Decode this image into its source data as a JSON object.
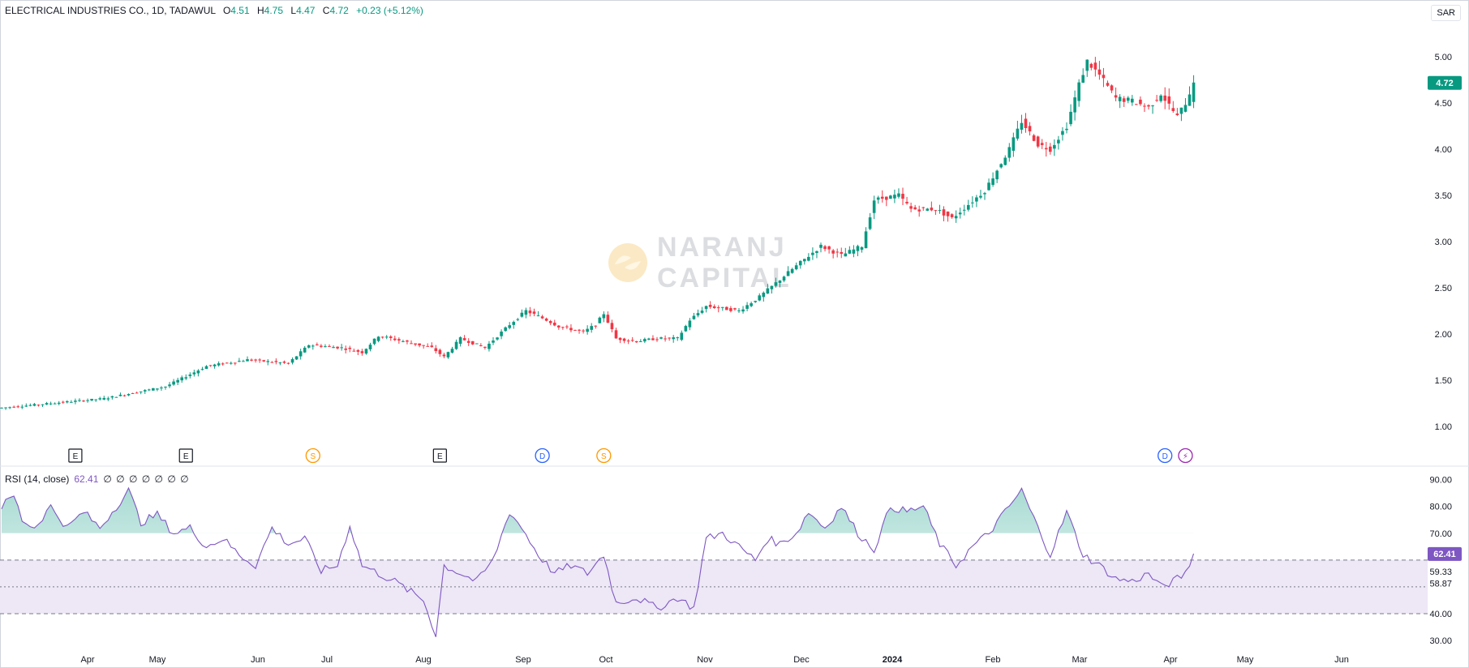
{
  "header": {
    "symbol": "ELECTRICAL INDUSTRIES CO., 1D, TADAWUL",
    "open_label": "O",
    "open": "4.51",
    "high_label": "H",
    "high": "4.75",
    "low_label": "L",
    "low": "4.47",
    "close_label": "C",
    "close": "4.72",
    "change": "+0.23 (+5.12%)"
  },
  "currency": "SAR",
  "watermark": {
    "line1": "NARANJ",
    "line2": "CAPITAL"
  },
  "rsi_header": {
    "title": "RSI (14, close)",
    "value": "62.41",
    "extras": "∅ ∅ ∅ ∅ ∅ ∅ ∅"
  },
  "colors": {
    "up": "#089981",
    "down": "#f23645",
    "rsi": "#7e57c2",
    "band": "#ede7f6"
  },
  "chart_data": [
    {
      "type": "candlestick",
      "y_axis_ticks": [
        1.0,
        1.5,
        2.0,
        2.5,
        3.0,
        3.5,
        4.0,
        4.5,
        5.0
      ],
      "ylim": [
        0.7,
        5.35
      ],
      "last_price_label": "4.72",
      "x_ticks": [
        "Apr",
        "May",
        "Jun",
        "Jul",
        "Aug",
        "Sep",
        "Oct",
        "Nov",
        "Dec",
        "2024",
        "Feb",
        "Mar",
        "Apr",
        "May",
        "Jun"
      ],
      "anchors": [
        [
          0,
          1.2
        ],
        [
          25,
          1.3
        ],
        [
          40,
          1.43
        ],
        [
          50,
          1.65
        ],
        [
          60,
          1.72
        ],
        [
          70,
          1.68
        ],
        [
          75,
          1.88
        ],
        [
          83,
          1.85
        ],
        [
          88,
          1.8
        ],
        [
          92,
          1.98
        ],
        [
          100,
          1.9
        ],
        [
          105,
          1.85
        ],
        [
          108,
          1.75
        ],
        [
          112,
          1.95
        ],
        [
          118,
          1.85
        ],
        [
          124,
          2.1
        ],
        [
          128,
          2.25
        ],
        [
          133,
          2.15
        ],
        [
          136,
          2.08
        ],
        [
          142,
          2.02
        ],
        [
          145,
          2.1
        ],
        [
          147,
          2.22
        ],
        [
          150,
          1.95
        ],
        [
          155,
          1.92
        ],
        [
          160,
          1.95
        ],
        [
          165,
          1.95
        ],
        [
          168,
          2.15
        ],
        [
          172,
          2.3
        ],
        [
          180,
          2.25
        ],
        [
          185,
          2.4
        ],
        [
          193,
          2.7
        ],
        [
          200,
          2.95
        ],
        [
          205,
          2.85
        ],
        [
          210,
          2.95
        ],
        [
          213,
          3.45
        ],
        [
          219,
          3.5
        ],
        [
          222,
          3.35
        ],
        [
          228,
          3.35
        ],
        [
          232,
          3.25
        ],
        [
          240,
          3.55
        ],
        [
          246,
          4.0
        ],
        [
          249,
          4.3
        ],
        [
          253,
          4.05
        ],
        [
          256,
          4.0
        ],
        [
          260,
          4.25
        ],
        [
          263,
          4.7
        ],
        [
          265,
          4.95
        ],
        [
          268,
          4.8
        ],
        [
          272,
          4.55
        ],
        [
          276,
          4.52
        ],
        [
          280,
          4.45
        ],
        [
          283,
          4.6
        ],
        [
          287,
          4.35
        ],
        [
          289,
          4.5
        ],
        [
          291,
          4.72
        ]
      ]
    },
    {
      "type": "line",
      "title": "RSI (14, close)",
      "y_axis_ticks": [
        30,
        40,
        50,
        60,
        70,
        80,
        90
      ],
      "ylim": [
        27,
        92
      ],
      "band": [
        40,
        60
      ],
      "mid": 50,
      "labels": [
        "62.41",
        "59.33",
        "58.87"
      ],
      "anchors": [
        [
          0,
          80
        ],
        [
          3,
          84
        ],
        [
          5,
          75
        ],
        [
          8,
          72
        ],
        [
          12,
          80
        ],
        [
          16,
          72
        ],
        [
          20,
          78
        ],
        [
          24,
          72
        ],
        [
          28,
          80
        ],
        [
          31,
          86
        ],
        [
          34,
          74
        ],
        [
          38,
          77
        ],
        [
          42,
          70
        ],
        [
          46,
          72
        ],
        [
          50,
          65
        ],
        [
          54,
          68
        ],
        [
          58,
          62
        ],
        [
          62,
          58
        ],
        [
          66,
          72
        ],
        [
          70,
          66
        ],
        [
          74,
          68
        ],
        [
          78,
          56
        ],
        [
          82,
          58
        ],
        [
          85,
          73
        ],
        [
          88,
          58
        ],
        [
          92,
          55
        ],
        [
          96,
          52
        ],
        [
          100,
          48
        ],
        [
          103,
          45
        ],
        [
          106,
          32
        ],
        [
          108,
          58
        ],
        [
          112,
          55
        ],
        [
          116,
          52
        ],
        [
          120,
          60
        ],
        [
          124,
          78
        ],
        [
          127,
          72
        ],
        [
          131,
          62
        ],
        [
          135,
          55
        ],
        [
          139,
          58
        ],
        [
          143,
          55
        ],
        [
          147,
          62
        ],
        [
          150,
          44
        ],
        [
          155,
          46
        ],
        [
          160,
          42
        ],
        [
          165,
          46
        ],
        [
          169,
          42
        ],
        [
          172,
          68
        ],
        [
          176,
          70
        ],
        [
          180,
          65
        ],
        [
          184,
          60
        ],
        [
          187,
          68
        ],
        [
          190,
          66
        ],
        [
          194,
          70
        ],
        [
          197,
          78
        ],
        [
          201,
          72
        ],
        [
          205,
          80
        ],
        [
          209,
          70
        ],
        [
          213,
          64
        ],
        [
          217,
          80
        ],
        [
          221,
          78
        ],
        [
          225,
          80
        ],
        [
          229,
          66
        ],
        [
          233,
          58
        ],
        [
          237,
          65
        ],
        [
          241,
          70
        ],
        [
          245,
          78
        ],
        [
          249,
          86
        ],
        [
          253,
          72
        ],
        [
          256,
          62
        ],
        [
          260,
          78
        ],
        [
          264,
          62
        ],
        [
          268,
          58
        ],
        [
          272,
          53
        ],
        [
          276,
          52
        ],
        [
          280,
          55
        ],
        [
          283,
          50
        ],
        [
          286,
          52
        ],
        [
          289,
          55
        ],
        [
          291,
          62.41
        ]
      ]
    }
  ]
}
